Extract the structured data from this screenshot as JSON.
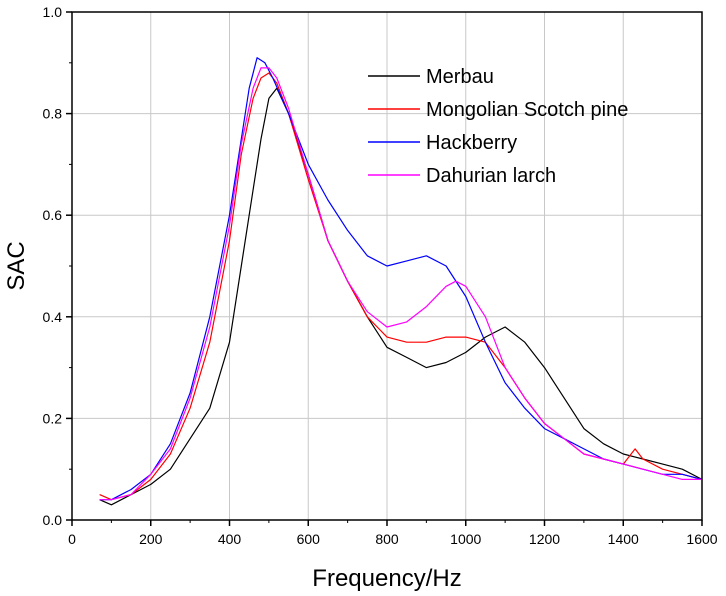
{
  "chart_data": {
    "type": "line",
    "title": "",
    "xlabel": "Frequency/Hz",
    "ylabel": "SAC",
    "xlim": [
      0,
      1600
    ],
    "ylim": [
      0.0,
      1.0
    ],
    "xticks": [
      "0",
      "200",
      "400",
      "600",
      "800",
      "1000",
      "1200",
      "1400",
      "1600"
    ],
    "yticks": [
      "0.0",
      "0.2",
      "0.4",
      "0.6",
      "0.8",
      "1.0"
    ],
    "grid": true,
    "legend_position": "top-right",
    "series": [
      {
        "name": "Merbau",
        "color": "#000000",
        "x": [
          70,
          100,
          150,
          200,
          250,
          300,
          350,
          400,
          430,
          460,
          480,
          500,
          520,
          550,
          600,
          650,
          700,
          750,
          800,
          850,
          900,
          950,
          1000,
          1050,
          1100,
          1150,
          1200,
          1250,
          1300,
          1350,
          1400,
          1450,
          1500,
          1550,
          1600
        ],
        "y": [
          0.04,
          0.03,
          0.05,
          0.07,
          0.1,
          0.16,
          0.22,
          0.35,
          0.5,
          0.65,
          0.75,
          0.83,
          0.85,
          0.8,
          0.68,
          0.55,
          0.47,
          0.4,
          0.34,
          0.32,
          0.3,
          0.31,
          0.33,
          0.36,
          0.38,
          0.35,
          0.3,
          0.24,
          0.18,
          0.15,
          0.13,
          0.12,
          0.11,
          0.1,
          0.08
        ]
      },
      {
        "name": "Mongolian Scotch pine",
        "color": "#ff0000",
        "x": [
          70,
          100,
          150,
          200,
          250,
          300,
          350,
          400,
          430,
          460,
          480,
          500,
          520,
          550,
          600,
          650,
          700,
          750,
          800,
          850,
          900,
          950,
          1000,
          1050,
          1100,
          1150,
          1200,
          1250,
          1300,
          1350,
          1400,
          1430,
          1450,
          1500,
          1550,
          1600
        ],
        "y": [
          0.05,
          0.04,
          0.05,
          0.08,
          0.13,
          0.22,
          0.35,
          0.55,
          0.72,
          0.83,
          0.87,
          0.88,
          0.86,
          0.8,
          0.67,
          0.55,
          0.47,
          0.4,
          0.36,
          0.35,
          0.35,
          0.36,
          0.36,
          0.35,
          0.3,
          0.24,
          0.19,
          0.16,
          0.13,
          0.12,
          0.11,
          0.14,
          0.12,
          0.1,
          0.09,
          0.08
        ]
      },
      {
        "name": "Hackberry",
        "color": "#0000ff",
        "x": [
          70,
          100,
          150,
          200,
          250,
          300,
          350,
          400,
          430,
          450,
          470,
          490,
          510,
          550,
          600,
          650,
          700,
          750,
          800,
          850,
          900,
          950,
          1000,
          1050,
          1100,
          1150,
          1200,
          1250,
          1300,
          1350,
          1400,
          1450,
          1500,
          1550,
          1600
        ],
        "y": [
          0.04,
          0.04,
          0.06,
          0.09,
          0.15,
          0.25,
          0.4,
          0.6,
          0.75,
          0.85,
          0.91,
          0.9,
          0.87,
          0.8,
          0.7,
          0.63,
          0.57,
          0.52,
          0.5,
          0.51,
          0.52,
          0.5,
          0.44,
          0.35,
          0.27,
          0.22,
          0.18,
          0.16,
          0.14,
          0.12,
          0.11,
          0.1,
          0.09,
          0.09,
          0.08
        ]
      },
      {
        "name": "Dahurian larch",
        "color": "#ff00ff",
        "x": [
          70,
          100,
          150,
          200,
          250,
          300,
          350,
          400,
          430,
          460,
          480,
          500,
          520,
          550,
          600,
          650,
          700,
          750,
          800,
          850,
          900,
          950,
          975,
          1000,
          1050,
          1100,
          1150,
          1200,
          1250,
          1300,
          1350,
          1400,
          1450,
          1500,
          1550,
          1600
        ],
        "y": [
          0.04,
          0.04,
          0.05,
          0.09,
          0.14,
          0.24,
          0.38,
          0.58,
          0.74,
          0.85,
          0.89,
          0.89,
          0.87,
          0.81,
          0.68,
          0.55,
          0.47,
          0.41,
          0.38,
          0.39,
          0.42,
          0.46,
          0.47,
          0.46,
          0.4,
          0.3,
          0.24,
          0.19,
          0.16,
          0.13,
          0.12,
          0.11,
          0.1,
          0.09,
          0.08,
          0.08
        ]
      }
    ]
  }
}
